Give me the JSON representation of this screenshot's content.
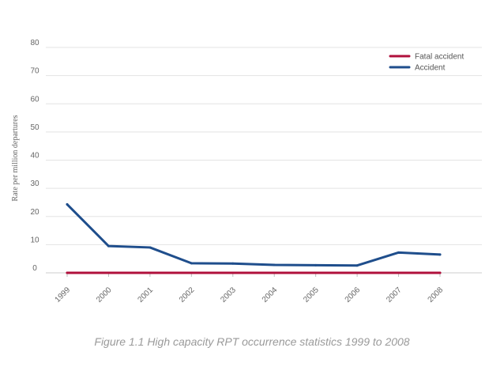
{
  "chart_data": {
    "type": "line",
    "title": "",
    "xlabel": "",
    "ylabel": "Rate per million departures",
    "ylim": [
      0,
      80
    ],
    "yticks": [
      0,
      10,
      20,
      30,
      40,
      50,
      60,
      70,
      80
    ],
    "grid": true,
    "categories": [
      "1999",
      "2000",
      "2001",
      "2002",
      "2003",
      "2004",
      "2005",
      "2006",
      "2007",
      "2008"
    ],
    "legend_position": "top-right",
    "series": [
      {
        "name": "Fatal accident",
        "color": "#b0103c",
        "values": [
          0,
          0,
          0,
          0,
          0,
          0,
          0,
          0,
          0,
          0
        ]
      },
      {
        "name": "Accident",
        "color": "#1f4e8c",
        "values": [
          24.3,
          9.5,
          9.0,
          3.4,
          3.3,
          2.8,
          2.7,
          2.6,
          7.2,
          6.5
        ]
      }
    ]
  },
  "caption": "Figure 1.1 High capacity RPT occurrence statistics 1999 to 2008"
}
